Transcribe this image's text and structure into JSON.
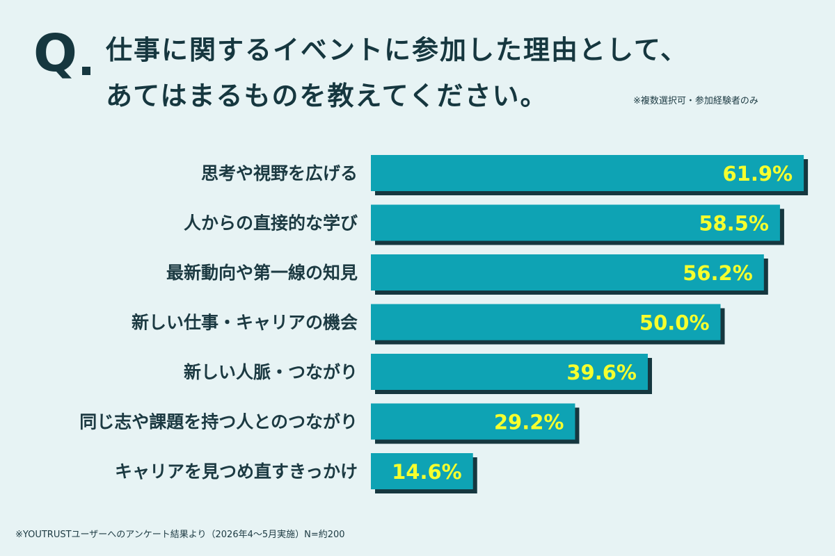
{
  "header": {
    "q_label": "Q",
    "title_line1": "仕事に関するイベントに参加した理由として、",
    "title_line2": "あてはまるものを教えてください。",
    "note": "※複数選択可・参加経験者のみ"
  },
  "footnote": "※YOUTRUSTユーザーへのアンケート結果より（2026年4〜5月実施）N=約200",
  "colors": {
    "bar": "#0ea3b4",
    "bar_shadow": "#16373f",
    "value_text": "#f5ff2e",
    "label_text": "#1c3a42",
    "background": "#e7f3f4"
  },
  "chart_data": {
    "type": "bar",
    "orientation": "horizontal",
    "categories": [
      "思考や視野を広げる",
      "人からの直接的な学び",
      "最新動向や第一線の知見",
      "新しい仕事・キャリアの機会",
      "新しい人脈・つながり",
      "同じ志や課題を持つ人とのつながり",
      "キャリアを見つめ直すきっかけ"
    ],
    "values": [
      61.9,
      58.5,
      56.2,
      50.0,
      39.6,
      29.2,
      14.6
    ],
    "value_labels": [
      "61.9%",
      "58.5%",
      "56.2%",
      "50.0%",
      "39.6%",
      "29.2%",
      "14.6%"
    ],
    "unit": "%",
    "xlim": [
      0,
      100
    ],
    "grid": false,
    "legend": "none"
  }
}
